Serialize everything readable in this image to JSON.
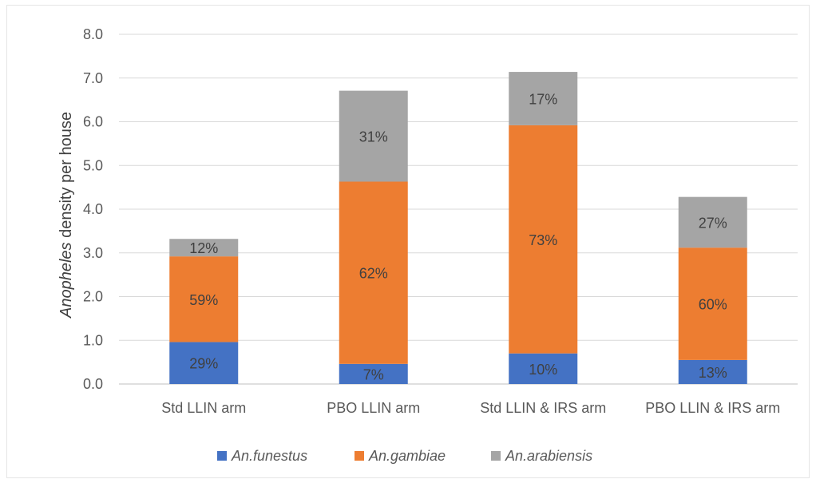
{
  "chart_data": {
    "type": "bar",
    "stacked": true,
    "categories": [
      "Std LLIN arm",
      "PBO LLIN arm",
      "Std LLIN & IRS arm",
      "PBO LLIN & IRS arm"
    ],
    "series": [
      {
        "name": "An.funestus",
        "color": "#4472c4",
        "values": [
          0.96,
          0.46,
          0.7,
          0.55
        ],
        "labels": [
          "29%",
          "7%",
          "10%",
          "13%"
        ]
      },
      {
        "name": "An.gambiae",
        "color": "#ed7d31",
        "values": [
          1.96,
          4.17,
          5.22,
          2.57
        ],
        "labels": [
          "59%",
          "62%",
          "73%",
          "60%"
        ]
      },
      {
        "name": "An.arabiensis",
        "color": "#a5a5a5",
        "values": [
          0.4,
          2.08,
          1.22,
          1.16
        ],
        "labels": [
          "12%",
          "31%",
          "17%",
          "27%"
        ]
      }
    ],
    "ylabel_italic": "Anopheles",
    "ylabel_rest": " density per house",
    "ylim": [
      0,
      8
    ],
    "yticks": [
      "0.0",
      "1.0",
      "2.0",
      "3.0",
      "4.0",
      "5.0",
      "6.0",
      "7.0",
      "8.0"
    ],
    "grid": true,
    "legend_position": "bottom"
  }
}
